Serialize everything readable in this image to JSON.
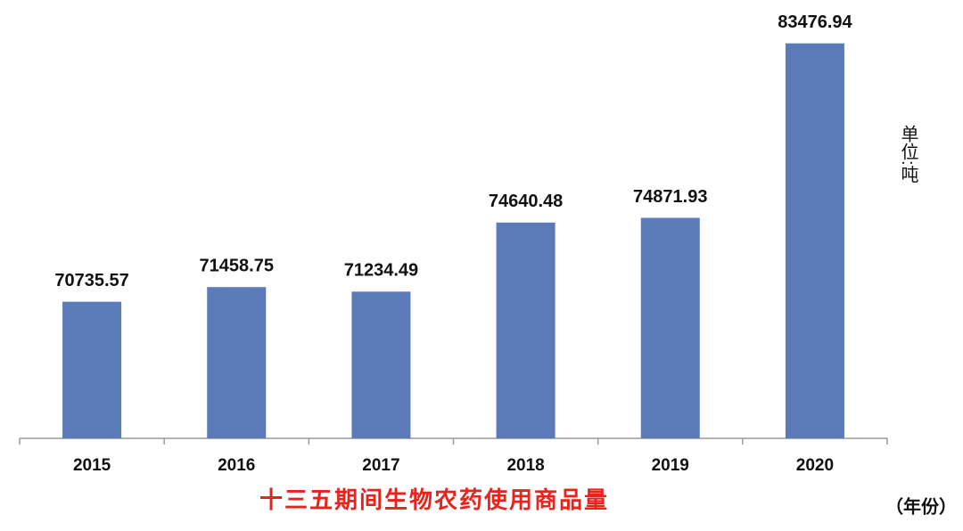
{
  "chart_data": {
    "type": "bar",
    "title": "十三五期间生物农药使用商品量",
    "y_label": "单位:吨",
    "x_label": "（年份）",
    "categories": [
      "2015",
      "2016",
      "2017",
      "2018",
      "2019",
      "2020"
    ],
    "values": [
      70735.57,
      71458.75,
      71234.49,
      74640.48,
      74871.93,
      83476.94
    ],
    "color": "#5b7ab8",
    "title_color": "#e8231e",
    "ylim": [
      64000,
      85000
    ],
    "grid": false
  }
}
